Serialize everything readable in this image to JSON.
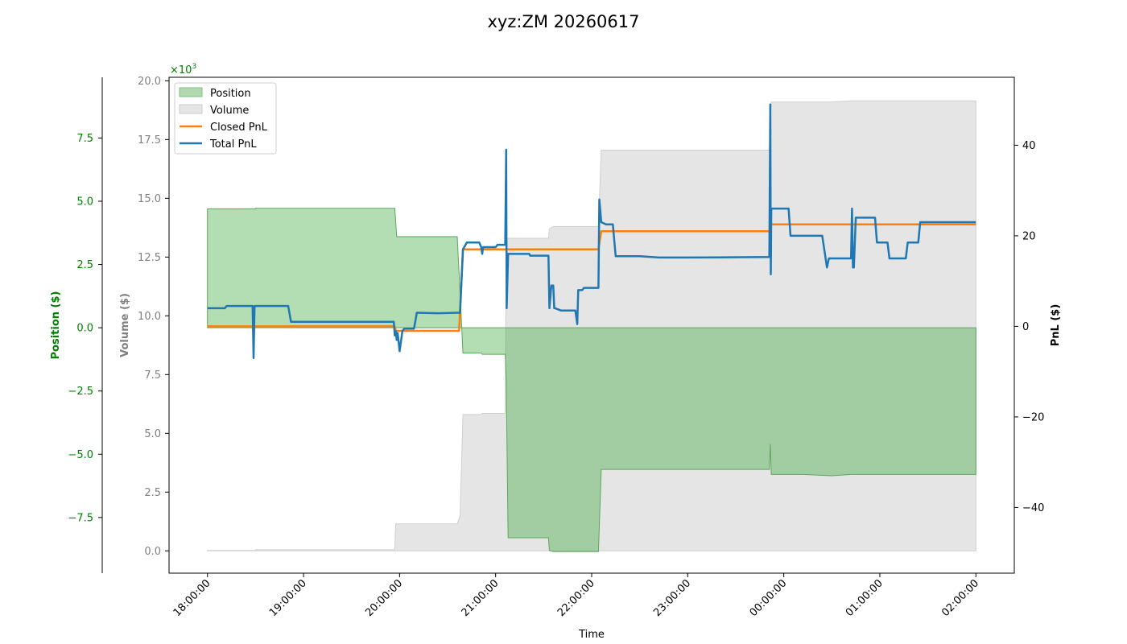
{
  "chart_data": {
    "type": "line",
    "title": "xyz:ZM 20260617",
    "xlabel": "Time",
    "x_ticks": [
      "18:00:00",
      "19:00:00",
      "20:00:00",
      "21:00:00",
      "22:00:00",
      "23:00:00",
      "00:00:00",
      "01:00:00",
      "02:00:00"
    ],
    "x_range_hours": [
      -0.4,
      8.4
    ],
    "axes": {
      "position": {
        "label": "Position ($)",
        "range": [
          -9.7,
          9.9
        ],
        "ticks": [
          -7.5,
          -5.0,
          -2.5,
          0.0,
          2.5,
          5.0,
          7.5
        ],
        "tick_labels": [
          "−7.5",
          "−5.0",
          "−2.5",
          "0.0",
          "2.5",
          "5.0",
          "7.5"
        ],
        "scale_label": "×10",
        "scale_exp": "3",
        "color": "#008000"
      },
      "volume": {
        "label": "Volume ($)",
        "range": [
          -0.95,
          20.15
        ],
        "ticks": [
          0.0,
          2.5,
          5.0,
          7.5,
          10.0,
          12.5,
          15.0,
          17.5,
          20.0
        ],
        "tick_labels": [
          "0.0",
          "2.5",
          "5.0",
          "7.5",
          "10.0",
          "12.5",
          "15.0",
          "17.5",
          "20.0"
        ],
        "color": "#808080"
      },
      "pnl": {
        "label": "PnL ($)",
        "range": [
          -54.5,
          55.0
        ],
        "ticks": [
          -40,
          -20,
          0,
          20,
          40
        ],
        "tick_labels": [
          "−40",
          "−20",
          "0",
          "20",
          "40"
        ],
        "color": "#000000"
      }
    },
    "legend": {
      "placement": "top-left",
      "entries": [
        {
          "label": "Position",
          "kind": "fill",
          "color": "#b2d8b2",
          "edge": "#7fbf7f"
        },
        {
          "label": "Volume",
          "kind": "fill",
          "color": "#e5e5e5",
          "edge": "#cccccc"
        },
        {
          "label": "Closed PnL",
          "kind": "line",
          "color": "#ff7f0e"
        },
        {
          "label": "Total PnL",
          "kind": "line",
          "color": "#1f77b4"
        }
      ]
    },
    "series": [
      {
        "name": "Position",
        "axis": "position",
        "color": "#2ca02c",
        "points": [
          [
            0,
            0
          ],
          [
            0,
            4.7
          ],
          [
            0.5,
            4.7
          ],
          [
            0.5,
            4.72
          ],
          [
            1.95,
            4.72
          ],
          [
            1.97,
            3.6
          ],
          [
            2.6,
            3.6
          ],
          [
            2.64,
            0.6
          ],
          [
            2.66,
            -1.0
          ],
          [
            2.85,
            -1.0
          ],
          [
            2.86,
            -1.05
          ],
          [
            3.1,
            -1.05
          ],
          [
            3.11,
            -2.0
          ],
          [
            3.13,
            -8.3
          ],
          [
            3.55,
            -8.3
          ],
          [
            3.56,
            -8.8
          ],
          [
            3.6,
            -8.85
          ],
          [
            4.07,
            -8.85
          ],
          [
            4.1,
            -5.6
          ],
          [
            4.7,
            -5.6
          ],
          [
            5.0,
            -5.6
          ],
          [
            5.8,
            -5.6
          ],
          [
            5.85,
            -5.6
          ],
          [
            5.86,
            -4.6
          ],
          [
            5.87,
            -5.8
          ],
          [
            6.2,
            -5.8
          ],
          [
            6.5,
            -5.85
          ],
          [
            6.7,
            -5.8
          ],
          [
            7.0,
            -5.8
          ],
          [
            8.0,
            -5.8
          ],
          [
            8.0,
            0
          ]
        ]
      },
      {
        "name": "Volume",
        "axis": "volume",
        "color": "#d3d3d3",
        "points": [
          [
            0,
            0
          ],
          [
            0,
            0.02
          ],
          [
            0.5,
            0.02
          ],
          [
            0.5,
            0.05
          ],
          [
            1.95,
            0.05
          ],
          [
            1.96,
            1.15
          ],
          [
            2.6,
            1.15
          ],
          [
            2.63,
            1.5
          ],
          [
            2.66,
            5.8
          ],
          [
            2.85,
            5.8
          ],
          [
            2.86,
            5.85
          ],
          [
            3.1,
            5.85
          ],
          [
            3.11,
            13.3
          ],
          [
            3.55,
            13.3
          ],
          [
            3.56,
            13.7
          ],
          [
            3.6,
            13.8
          ],
          [
            4.07,
            13.8
          ],
          [
            4.1,
            17.05
          ],
          [
            5.85,
            17.05
          ],
          [
            5.87,
            19.1
          ],
          [
            6.5,
            19.1
          ],
          [
            6.7,
            19.15
          ],
          [
            8.0,
            19.15
          ],
          [
            8.0,
            0
          ]
        ]
      },
      {
        "name": "Closed PnL",
        "axis": "pnl",
        "color": "#ff7f0e",
        "points": [
          [
            0,
            0
          ],
          [
            1.95,
            0
          ],
          [
            1.96,
            -1
          ],
          [
            2.62,
            -1
          ],
          [
            2.66,
            17
          ],
          [
            4.07,
            17
          ],
          [
            4.1,
            21
          ],
          [
            5.85,
            21
          ],
          [
            5.87,
            22.5
          ],
          [
            8.0,
            22.5
          ]
        ]
      },
      {
        "name": "Total PnL",
        "axis": "pnl",
        "color": "#1f77b4",
        "points": [
          [
            0,
            4
          ],
          [
            0.18,
            4
          ],
          [
            0.2,
            4.5
          ],
          [
            0.47,
            4.5
          ],
          [
            0.48,
            -7
          ],
          [
            0.49,
            4.5
          ],
          [
            0.84,
            4.5
          ],
          [
            0.87,
            1
          ],
          [
            0.9,
            1
          ],
          [
            1.8,
            1
          ],
          [
            1.94,
            1
          ],
          [
            1.95,
            -2
          ],
          [
            1.96,
            -1
          ],
          [
            1.97,
            -3
          ],
          [
            1.98,
            -1.5
          ],
          [
            2.0,
            -5.5
          ],
          [
            2.03,
            -1
          ],
          [
            2.05,
            -0.5
          ],
          [
            2.15,
            -0.5
          ],
          [
            2.18,
            3
          ],
          [
            2.4,
            2.9
          ],
          [
            2.6,
            3
          ],
          [
            2.63,
            3
          ],
          [
            2.66,
            17
          ],
          [
            2.7,
            18.5
          ],
          [
            2.83,
            18.5
          ],
          [
            2.85,
            17.5
          ],
          [
            2.86,
            16
          ],
          [
            2.87,
            17.5
          ],
          [
            3.0,
            17.5
          ],
          [
            3.02,
            18
          ],
          [
            3.1,
            18
          ],
          [
            3.11,
            39
          ],
          [
            3.115,
            4
          ],
          [
            3.13,
            16
          ],
          [
            3.35,
            16
          ],
          [
            3.36,
            15.6
          ],
          [
            3.55,
            15.6
          ],
          [
            3.56,
            4
          ],
          [
            3.58,
            9
          ],
          [
            3.6,
            9
          ],
          [
            3.61,
            4
          ],
          [
            3.62,
            4
          ],
          [
            3.68,
            3.5
          ],
          [
            3.83,
            3.5
          ],
          [
            3.85,
            0.5
          ],
          [
            3.86,
            8
          ],
          [
            3.9,
            8
          ],
          [
            3.92,
            8.5
          ],
          [
            4.07,
            8.5
          ],
          [
            4.08,
            28
          ],
          [
            4.1,
            23
          ],
          [
            4.15,
            22.5
          ],
          [
            4.22,
            22.5
          ],
          [
            4.25,
            15.5
          ],
          [
            4.5,
            15.5
          ],
          [
            4.7,
            15.2
          ],
          [
            5.0,
            15.2
          ],
          [
            5.85,
            15.3
          ],
          [
            5.86,
            49
          ],
          [
            5.865,
            11.5
          ],
          [
            5.87,
            26
          ],
          [
            6.05,
            26
          ],
          [
            6.07,
            20
          ],
          [
            6.4,
            20
          ],
          [
            6.45,
            13
          ],
          [
            6.47,
            15
          ],
          [
            6.7,
            15
          ],
          [
            6.71,
            26
          ],
          [
            6.72,
            13
          ],
          [
            6.73,
            13
          ],
          [
            6.75,
            24
          ],
          [
            6.95,
            24
          ],
          [
            6.97,
            18.5
          ],
          [
            7.08,
            18.5
          ],
          [
            7.1,
            15
          ],
          [
            7.27,
            15
          ],
          [
            7.29,
            18.5
          ],
          [
            7.4,
            18.5
          ],
          [
            7.42,
            23
          ],
          [
            7.6,
            23
          ],
          [
            8.0,
            23
          ]
        ]
      }
    ]
  }
}
